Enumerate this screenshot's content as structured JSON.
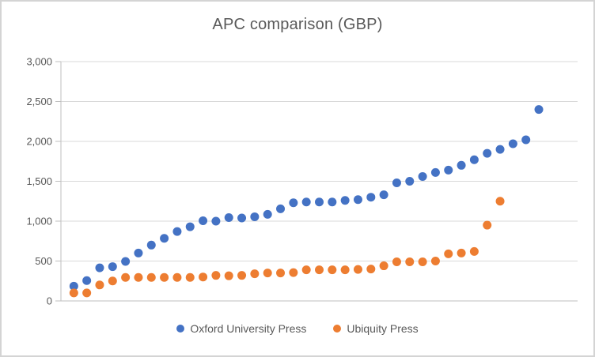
{
  "window": {
    "background_color": "#FFFFFF",
    "border_color": "#D4D4D4"
  },
  "chart": {
    "title": "APC comparison (GBP)",
    "title_color": "#595959",
    "gridline_color": "#D9D9D9",
    "axis_line_color": "#BFBFBF",
    "tick_label_color": "#595959",
    "y_axis": {
      "min": 0,
      "max": 3000,
      "tick_interval": 500,
      "tick_labels": [
        "0",
        "500",
        "1,000",
        "1,500",
        "2,000",
        "2,500",
        "3,000"
      ]
    },
    "x_axis": {
      "min": 0,
      "max": 40,
      "labels_visible": false
    },
    "legend_position": "bottom"
  },
  "chart_data": {
    "type": "scatter",
    "title": "APC comparison (GBP)",
    "xlabel": "",
    "ylabel": "",
    "ylim": [
      0,
      3000
    ],
    "xlim": [
      0,
      40
    ],
    "grid": true,
    "legend_position": "bottom",
    "series": [
      {
        "name": "Oxford University Press",
        "color": "#4472C4",
        "x": [
          1,
          2,
          3,
          4,
          5,
          6,
          7,
          8,
          9,
          10,
          11,
          12,
          13,
          14,
          15,
          16,
          17,
          18,
          19,
          20,
          21,
          22,
          23,
          24,
          25,
          26,
          27,
          28,
          29,
          30,
          31,
          32,
          33,
          34,
          35,
          36,
          37
        ],
        "y": [
          185,
          255,
          415,
          430,
          495,
          600,
          700,
          785,
          870,
          930,
          1005,
          1000,
          1045,
          1040,
          1055,
          1085,
          1155,
          1230,
          1240,
          1240,
          1240,
          1260,
          1270,
          1300,
          1330,
          1480,
          1500,
          1560,
          1610,
          1640,
          1700,
          1770,
          1850,
          1900,
          1970,
          2020,
          2400
        ]
      },
      {
        "name": "Ubiquity Press",
        "color": "#ED7D31",
        "x": [
          1,
          2,
          3,
          4,
          5,
          6,
          7,
          8,
          9,
          10,
          11,
          12,
          13,
          14,
          15,
          16,
          17,
          18,
          19,
          20,
          21,
          22,
          23,
          24,
          25,
          26,
          27,
          28,
          29,
          30,
          31,
          32,
          33,
          34
        ],
        "y": [
          100,
          100,
          200,
          250,
          295,
          295,
          295,
          295,
          295,
          295,
          300,
          320,
          315,
          320,
          340,
          350,
          350,
          355,
          390,
          390,
          390,
          390,
          395,
          400,
          440,
          490,
          490,
          490,
          500,
          590,
          600,
          620,
          950,
          1250
        ]
      }
    ]
  }
}
